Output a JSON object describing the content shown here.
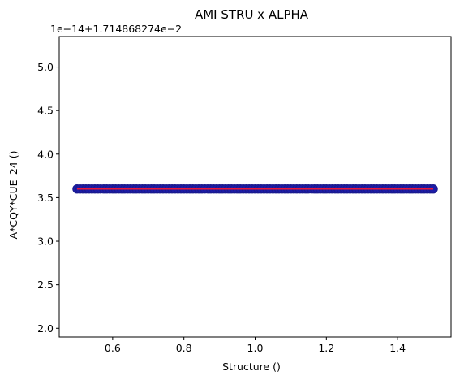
{
  "chart_data": {
    "type": "scatter",
    "title": "AMI STRU x ALPHA",
    "xlabel": "Structure ()",
    "ylabel": "A*CQY*CUE_24 ()",
    "y_offset_label": "1e−14+1.714868274e−2",
    "xlim": [
      0.45,
      1.55
    ],
    "ylim": [
      1.9,
      5.35
    ],
    "x_ticks": [
      0.6,
      0.8,
      1.0,
      1.2,
      1.4
    ],
    "x_tick_labels": [
      "0.6",
      "0.8",
      "1.0",
      "1.2",
      "1.4"
    ],
    "y_ticks": [
      2.0,
      2.5,
      3.0,
      3.5,
      4.0,
      4.5,
      5.0
    ],
    "y_tick_labels": [
      "2.0",
      "2.5",
      "3.0",
      "3.5",
      "4.0",
      "4.5",
      "5.0"
    ],
    "grid": false,
    "series": [
      {
        "x_range": [
          0.5,
          1.5
        ],
        "y_value": 3.6,
        "marker_fill": "#1c1ca8",
        "marker_edge": "#1a1a8c",
        "line_color": "#e8173b"
      }
    ]
  }
}
